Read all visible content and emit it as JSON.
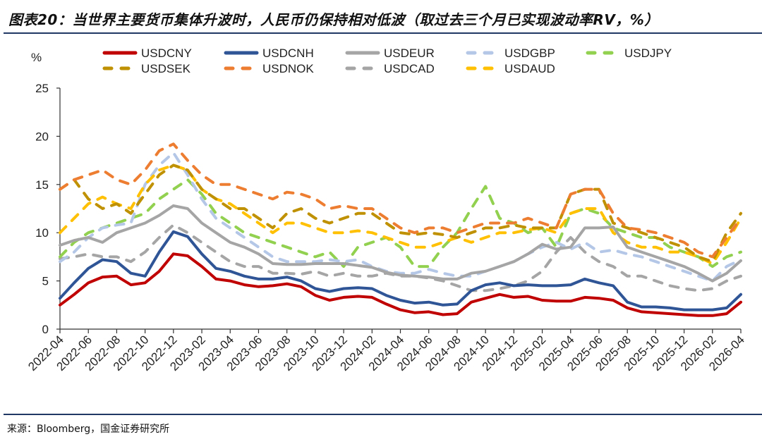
{
  "title": "图表20：当世界主要货币集体升波时，人民币仍保持相对低波（取过去三个月已实现波动率RV，%）",
  "source": "来源：Bloomberg，国金证券研究所",
  "chart_data": {
    "type": "line",
    "ylabel": "%",
    "ylim": [
      0,
      25
    ],
    "yticks": [
      "0",
      "5",
      "10",
      "15",
      "20",
      "25"
    ],
    "grid": false,
    "legend_position": "top",
    "xticks": [
      "2022-04",
      "2022-06",
      "2022-08",
      "2022-10",
      "2022-12",
      "2023-02",
      "2023-04",
      "2023-06",
      "2023-08",
      "2023-10",
      "2023-12",
      "2024-02",
      "2024-04",
      "2024-06",
      "2024-08",
      "2024-10",
      "2024-12",
      "2025-02",
      "2025-04",
      "2025-06",
      "2025-08",
      "2025-10",
      "2025-12",
      "2026-02",
      "2026-04"
    ],
    "x_start": "2022-04",
    "x_end": "2026-04",
    "x_frequency": "monthly",
    "series": [
      {
        "name": "USDCNY",
        "color": "#C00000",
        "style": "solid",
        "values": [
          2.5,
          3.6,
          4.8,
          5.4,
          5.5,
          4.6,
          4.8,
          6.0,
          7.8,
          7.6,
          6.5,
          5.2,
          5.0,
          4.6,
          4.4,
          4.5,
          4.7,
          4.4,
          3.5,
          3.0,
          3.3,
          3.4,
          3.3,
          2.6,
          2.0,
          1.7,
          1.8,
          1.5,
          1.6,
          2.8,
          3.2,
          3.6,
          3.3,
          3.4,
          3.0,
          2.9,
          2.9,
          3.3,
          3.2,
          3.0,
          2.2,
          1.8,
          1.7,
          1.6,
          1.5,
          1.4,
          1.4,
          1.6,
          2.8
        ]
      },
      {
        "name": "USDCNH",
        "color": "#2F5597",
        "style": "solid",
        "values": [
          3.2,
          4.8,
          6.3,
          7.2,
          7.0,
          5.8,
          5.5,
          8.0,
          10.1,
          9.6,
          7.8,
          6.3,
          6.0,
          5.5,
          5.2,
          5.2,
          5.4,
          5.0,
          4.2,
          3.9,
          4.2,
          4.3,
          4.2,
          3.5,
          3.0,
          2.7,
          2.8,
          2.5,
          2.6,
          4.0,
          4.6,
          4.8,
          4.5,
          4.6,
          4.5,
          4.5,
          4.6,
          5.2,
          4.8,
          4.5,
          2.8,
          2.3,
          2.3,
          2.2,
          2.0,
          2.0,
          2.0,
          2.2,
          3.6
        ]
      },
      {
        "name": "USDEUR",
        "color": "#A5A5A5",
        "style": "solid",
        "values": [
          8.7,
          9.2,
          9.5,
          9.0,
          10.0,
          10.5,
          11.0,
          11.8,
          12.8,
          12.5,
          11.0,
          10.0,
          9.0,
          8.5,
          7.8,
          6.8,
          6.7,
          6.7,
          6.8,
          6.8,
          6.8,
          6.6,
          6.4,
          5.9,
          5.6,
          5.5,
          5.4,
          5.2,
          5.2,
          5.8,
          6.0,
          6.5,
          7.0,
          7.8,
          8.8,
          8.3,
          8.5,
          10.5,
          10.5,
          10.6,
          8.5,
          8.0,
          7.5,
          7.0,
          6.5,
          5.8,
          5.0,
          5.8,
          7.1
        ]
      },
      {
        "name": "USDGBP",
        "color": "#B4C7E7",
        "style": "dash",
        "values": [
          7.0,
          8.0,
          9.5,
          10.5,
          10.8,
          11.0,
          15.0,
          17.0,
          18.3,
          16.0,
          13.5,
          11.5,
          10.5,
          9.5,
          8.5,
          7.5,
          7.0,
          7.0,
          7.0,
          7.2,
          7.0,
          7.2,
          6.5,
          6.0,
          5.8,
          5.8,
          6.2,
          5.8,
          5.5,
          5.5,
          6.0,
          6.5,
          7.0,
          7.8,
          8.5,
          9.0,
          8.3,
          9.0,
          8.0,
          8.2,
          7.8,
          7.5,
          7.0,
          6.5,
          6.0,
          5.5,
          5.0,
          6.5,
          7.2
        ]
      },
      {
        "name": "USDJPY",
        "color": "#92D050",
        "style": "dash",
        "values": [
          7.5,
          9.0,
          10.0,
          10.5,
          11.0,
          11.5,
          12.0,
          13.5,
          14.5,
          15.5,
          14.0,
          12.0,
          11.0,
          10.0,
          9.5,
          9.0,
          8.5,
          8.0,
          7.5,
          8.0,
          6.5,
          8.5,
          9.0,
          9.5,
          8.5,
          6.5,
          6.5,
          8.5,
          10.0,
          12.5,
          14.8,
          11.5,
          11.0,
          10.0,
          10.5,
          8.5,
          12.0,
          12.5,
          12.0,
          10.5,
          10.0,
          9.5,
          9.5,
          8.5,
          8.0,
          7.5,
          6.5,
          7.5,
          8.0
        ]
      },
      {
        "name": "USDSEK",
        "color": "#BF9000",
        "style": "dash",
        "values": [
          14.5,
          15.5,
          13.5,
          12.5,
          13.0,
          12.0,
          14.0,
          16.0,
          17.0,
          16.5,
          14.5,
          13.5,
          12.5,
          12.5,
          11.5,
          10.5,
          12.0,
          12.5,
          11.5,
          11.0,
          11.5,
          12.0,
          12.0,
          11.0,
          10.0,
          9.8,
          10.0,
          9.8,
          9.5,
          10.0,
          10.5,
          10.5,
          10.8,
          10.5,
          10.5,
          10.5,
          14.0,
          14.5,
          14.5,
          11.0,
          10.5,
          10.0,
          9.5,
          9.0,
          8.5,
          7.5,
          7.0,
          10.0,
          12.0
        ]
      },
      {
        "name": "USDNOK",
        "color": "#ED7D31",
        "style": "dash",
        "values": [
          14.5,
          15.5,
          16.0,
          16.5,
          15.5,
          15.0,
          16.5,
          18.5,
          19.2,
          17.5,
          16.0,
          15.0,
          15.0,
          14.5,
          14.0,
          13.5,
          14.2,
          14.0,
          13.5,
          12.5,
          12.8,
          12.5,
          12.5,
          11.5,
          10.5,
          10.0,
          10.5,
          10.5,
          10.0,
          10.5,
          11.0,
          11.0,
          11.0,
          11.5,
          11.0,
          10.5,
          14.0,
          14.5,
          14.5,
          12.0,
          10.5,
          10.3,
          10.0,
          9.5,
          9.0,
          8.0,
          7.5,
          9.5,
          11.5
        ]
      },
      {
        "name": "USDCAD",
        "color": "#A5A5A5",
        "style": "dash",
        "values": [
          7.3,
          7.5,
          7.8,
          7.5,
          7.5,
          7.0,
          8.0,
          9.5,
          10.8,
          10.0,
          9.0,
          8.0,
          7.0,
          6.5,
          6.5,
          5.8,
          5.8,
          5.7,
          6.0,
          5.5,
          5.8,
          5.5,
          5.5,
          5.8,
          5.5,
          5.5,
          5.3,
          5.0,
          4.5,
          4.0,
          4.0,
          4.2,
          4.5,
          5.0,
          6.0,
          8.0,
          9.5,
          8.0,
          7.0,
          6.5,
          5.5,
          5.5,
          5.0,
          4.5,
          4.2,
          4.0,
          4.2,
          5.0,
          5.5
        ]
      },
      {
        "name": "USDAUD",
        "color": "#FFC000",
        "style": "dash",
        "values": [
          10.0,
          11.5,
          13.0,
          13.7,
          13.0,
          12.5,
          15.0,
          16.5,
          17.0,
          16.5,
          14.5,
          13.5,
          13.0,
          12.0,
          11.0,
          10.0,
          11.0,
          11.0,
          10.5,
          10.0,
          10.0,
          10.2,
          10.0,
          9.5,
          9.0,
          8.5,
          8.5,
          9.0,
          9.5,
          9.0,
          9.5,
          10.0,
          10.0,
          10.3,
          10.5,
          10.0,
          12.0,
          12.5,
          12.5,
          10.0,
          9.0,
          8.5,
          8.5,
          8.0,
          8.0,
          7.5,
          6.8,
          9.0,
          11.5
        ]
      }
    ]
  }
}
